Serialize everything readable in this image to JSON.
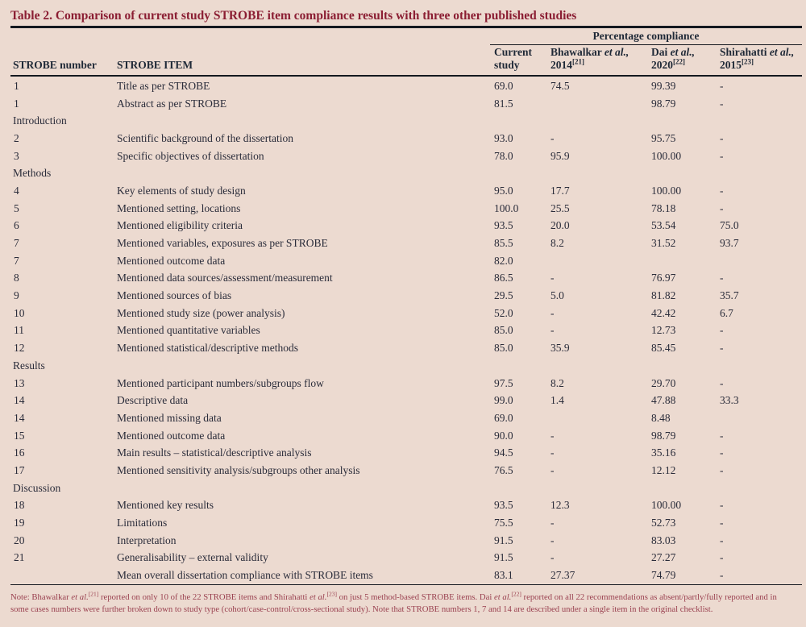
{
  "title": "Table 2. Comparison of current study STROBE item compliance results with three other published studies",
  "colors": {
    "background": "#ecdad0",
    "title_color": "#8b1e33",
    "body_text_color": "#2a2c3a",
    "header_text_color": "#1e2836",
    "footnote_color": "#9a4150",
    "rule_color": "#14181f"
  },
  "table": {
    "group_header": "Percentage compliance",
    "columns": [
      {
        "label": "STROBE number"
      },
      {
        "label": "STROBE ITEM"
      },
      {
        "lines": [
          "Current",
          "study"
        ]
      },
      {
        "name": "Bhawalkar",
        "etal": "et al.,",
        "year": "2014",
        "ref": "[21]"
      },
      {
        "name": "Dai",
        "etal": "et al.,",
        "year": "2020",
        "ref": "[22]"
      },
      {
        "name": "Shirahatti",
        "etal": "et al.,",
        "year": "2015",
        "ref": "[23]"
      }
    ],
    "rows": [
      {
        "number": "1",
        "item": "Title as per STROBE",
        "values": [
          "69.0",
          "74.5",
          "99.39",
          "-"
        ]
      },
      {
        "number": "1",
        "item": "Abstract as per STROBE",
        "values": [
          "81.5",
          "",
          "98.79",
          "-"
        ]
      },
      {
        "section": "Introduction"
      },
      {
        "number": "2",
        "item": "Scientific background of the dissertation",
        "values": [
          "93.0",
          "-",
          "95.75",
          "-"
        ]
      },
      {
        "number": "3",
        "item": "Specific objectives of dissertation",
        "values": [
          "78.0",
          "95.9",
          "100.00",
          "-"
        ]
      },
      {
        "section": "Methods"
      },
      {
        "number": "4",
        "item": "Key elements of study design",
        "values": [
          "95.0",
          "17.7",
          "100.00",
          "-"
        ]
      },
      {
        "number": "5",
        "item": "Mentioned setting, locations",
        "values": [
          "100.0",
          "25.5",
          "78.18",
          "-"
        ]
      },
      {
        "number": "6",
        "item": "Mentioned eligibility criteria",
        "values": [
          "93.5",
          "20.0",
          "53.54",
          "75.0"
        ]
      },
      {
        "number": "7",
        "item": "Mentioned variables, exposures as per STROBE",
        "values": [
          "85.5",
          "8.2",
          "31.52",
          "93.7"
        ]
      },
      {
        "number": "7",
        "item": "Mentioned outcome data",
        "values": [
          "82.0",
          "",
          "",
          ""
        ]
      },
      {
        "number": "8",
        "item": "Mentioned data sources/assessment/measurement",
        "values": [
          "86.5",
          "-",
          "76.97",
          "-"
        ]
      },
      {
        "number": "9",
        "item": "Mentioned sources of bias",
        "values": [
          "29.5",
          "5.0",
          "81.82",
          "35.7"
        ]
      },
      {
        "number": "10",
        "item": "Mentioned study size (power analysis)",
        "values": [
          "52.0",
          "-",
          "42.42",
          "6.7"
        ]
      },
      {
        "number": "11",
        "item": "Mentioned quantitative variables",
        "values": [
          "85.0",
          "-",
          "12.73",
          "-"
        ]
      },
      {
        "number": "12",
        "item": "Mentioned statistical/descriptive methods",
        "values": [
          "85.0",
          "35.9",
          "85.45",
          "-"
        ]
      },
      {
        "section": "Results"
      },
      {
        "number": "13",
        "item": "Mentioned participant numbers/subgroups flow",
        "values": [
          "97.5",
          "8.2",
          "29.70",
          "-"
        ]
      },
      {
        "number": "14",
        "item": "Descriptive data",
        "values": [
          "99.0",
          "1.4",
          "47.88",
          "33.3"
        ]
      },
      {
        "number": "14",
        "item": "Mentioned missing data",
        "values": [
          "69.0",
          "",
          "8.48",
          ""
        ]
      },
      {
        "number": "15",
        "item": "Mentioned outcome data",
        "values": [
          "90.0",
          "-",
          "98.79",
          "-"
        ]
      },
      {
        "number": "16",
        "item": "Main results – statistical/descriptive analysis",
        "values": [
          "94.5",
          "-",
          "35.16",
          "-"
        ]
      },
      {
        "number": "17",
        "item": "Mentioned sensitivity analysis/subgroups other analysis",
        "values": [
          "76.5",
          "-",
          "12.12",
          "-"
        ]
      },
      {
        "section": "Discussion"
      },
      {
        "number": "18",
        "item": "Mentioned key results",
        "values": [
          "93.5",
          "12.3",
          "100.00",
          "-"
        ]
      },
      {
        "number": "19",
        "item": "Limitations",
        "values": [
          "75.5",
          "-",
          "52.73",
          "-"
        ]
      },
      {
        "number": "20",
        "item": "Interpretation",
        "values": [
          "91.5",
          "-",
          "83.03",
          "-"
        ]
      },
      {
        "number": "21",
        "item": "Generalisability – external validity",
        "values": [
          "91.5",
          "-",
          "27.27",
          "-"
        ]
      },
      {
        "number": "",
        "item": "Mean overall dissertation compliance with STROBE items",
        "values": [
          "83.1",
          "27.37",
          "74.79",
          "-"
        ]
      }
    ]
  },
  "footnote": {
    "parts": [
      {
        "t": "Note: Bhawalkar "
      },
      {
        "t": "et al.",
        "i": true
      },
      {
        "t": "[21]",
        "sup": true
      },
      {
        "t": " reported on only 10 of the 22 STROBE items and Shirahatti "
      },
      {
        "t": "et al.",
        "i": true
      },
      {
        "t": "[23]",
        "sup": true
      },
      {
        "t": " on just 5 method-based STROBE items. Dai "
      },
      {
        "t": "et al.",
        "i": true
      },
      {
        "t": "[22]",
        "sup": true
      },
      {
        "t": " reported on all 22 recommendations as absent/partly/fully reported and in some cases numbers were further broken down to study type (cohort/case-control/cross-sectional study). Note that STROBE numbers 1, 7 and 14 are described under a single item in the original checklist."
      }
    ]
  }
}
